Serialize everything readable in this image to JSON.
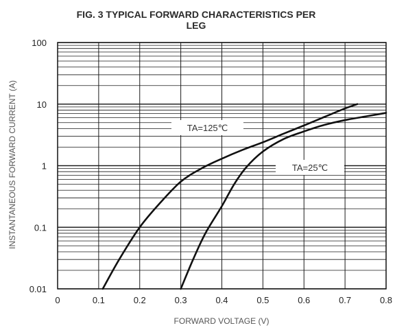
{
  "chart_data": {
    "type": "line",
    "title_line1": "FIG. 3 TYPICAL FORWARD CHARACTERISTICS PER",
    "title_line2": "LEG",
    "xlabel": "FORWARD VOLTAGE (V)",
    "ylabel": "INSTANTANEOUS FORWARD CURRENT (A)",
    "xlim": [
      0,
      0.8
    ],
    "ylim": [
      0.01,
      100
    ],
    "yscale": "log",
    "grid": true,
    "x_ticks": [
      "0",
      "0.1",
      "0.2",
      "0.3",
      "0.4",
      "0.5",
      "0.6",
      "0.7",
      "0.8"
    ],
    "y_ticks": [
      "0.01",
      "0.1",
      "1",
      "10",
      "100"
    ],
    "annotations": [
      {
        "text": "TA=125℃",
        "series": "TA=125℃"
      },
      {
        "text": "TA=25℃",
        "series": "TA=25℃"
      }
    ],
    "series": [
      {
        "name": "TA=125℃",
        "x": [
          0.11,
          0.15,
          0.2,
          0.25,
          0.3,
          0.35,
          0.4,
          0.45,
          0.5,
          0.55,
          0.6,
          0.65,
          0.7,
          0.73
        ],
        "y": [
          0.01,
          0.03,
          0.1,
          0.25,
          0.55,
          0.9,
          1.3,
          1.8,
          2.4,
          3.3,
          4.5,
          6.2,
          8.5,
          10
        ]
      },
      {
        "name": "TA=25℃",
        "x": [
          0.3,
          0.33,
          0.36,
          0.4,
          0.43,
          0.46,
          0.5,
          0.55,
          0.6,
          0.65,
          0.7,
          0.75,
          0.8
        ],
        "y": [
          0.01,
          0.03,
          0.08,
          0.22,
          0.5,
          0.95,
          1.7,
          2.7,
          3.6,
          4.6,
          5.5,
          6.3,
          7.2
        ]
      }
    ],
    "colors": {
      "line": "#111111",
      "grid": "#1a1a1a",
      "frame": "#111111"
    }
  }
}
